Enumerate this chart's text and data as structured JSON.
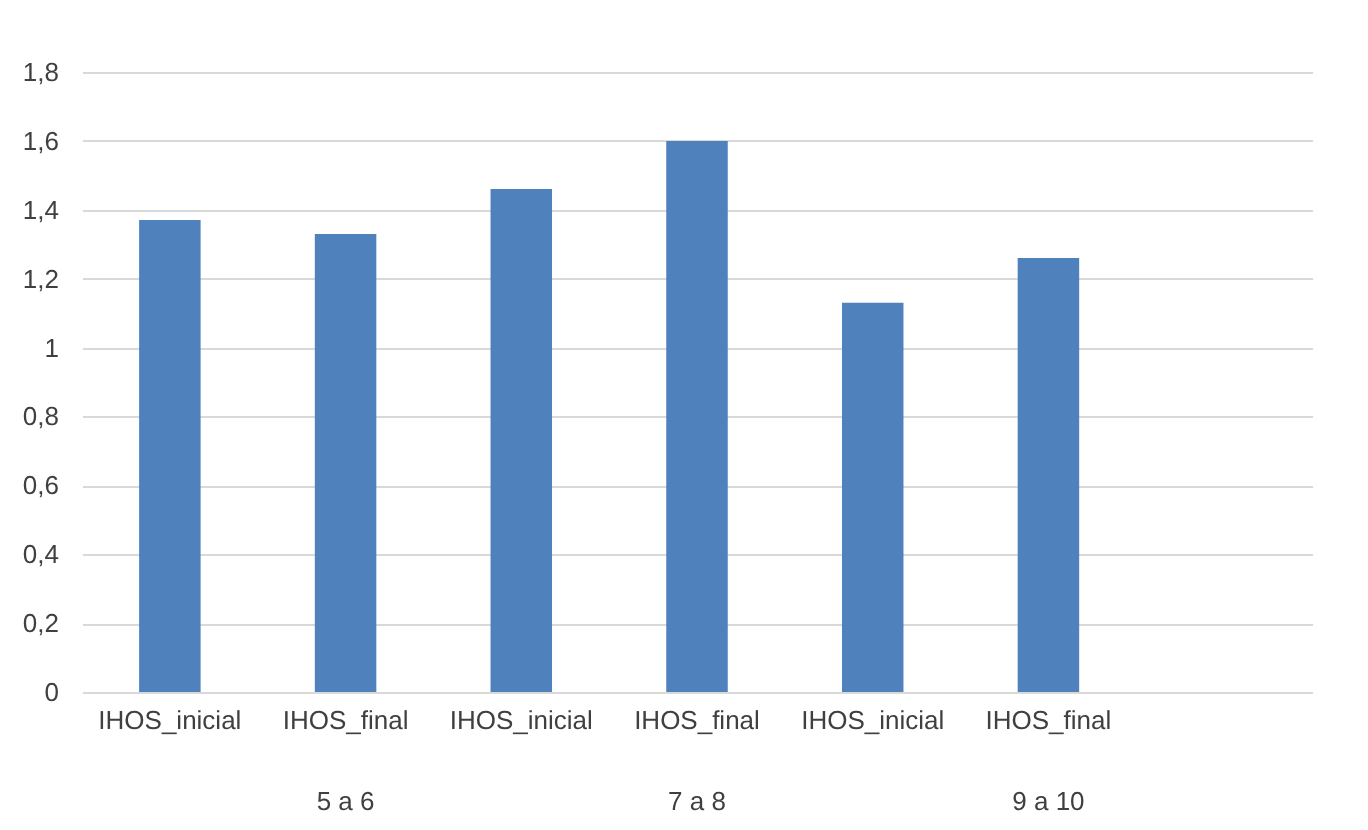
{
  "chart_data": {
    "type": "bar",
    "categories": [
      "IHOS_inicial",
      "IHOS_final",
      "IHOS_inicial",
      "IHOS_final",
      "IHOS_inicial",
      "IHOS_final",
      null
    ],
    "values": [
      1.37,
      1.33,
      1.46,
      1.6,
      1.13,
      1.26,
      null
    ],
    "color": "#4f81bd",
    "ylim": [
      0,
      1.8
    ],
    "yticks": [
      0,
      {
        "value": 0.2,
        "label": "0,2"
      },
      {
        "value": 0.4,
        "label": "0,4"
      },
      {
        "value": 0.6,
        "label": "0,6"
      },
      {
        "value": 0.8,
        "label": "0,8"
      },
      1,
      {
        "value": 1.2,
        "label": "1,2"
      },
      {
        "value": 1.4,
        "label": "1,4"
      },
      {
        "value": 1.6,
        "label": "1,6"
      },
      {
        "value": 1.8,
        "label": "1,8"
      }
    ],
    "grid": "y",
    "annotations": [
      "5 a 6",
      "7 a 8",
      "9 a 10"
    ]
  }
}
